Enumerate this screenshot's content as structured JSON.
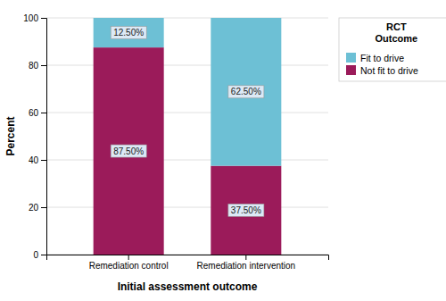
{
  "chart_data": {
    "type": "bar",
    "stacked": true,
    "xlabel": "Initial assessment outcome",
    "ylabel": "Percent",
    "legend_title": "RCT\nOutcome",
    "categories": [
      "Remediation control",
      "Remediation intervention"
    ],
    "series": [
      {
        "name": "Not fit to drive",
        "color": "#9B1B5A",
        "values": [
          87.5,
          37.5
        ],
        "value_labels": [
          "87.50%",
          "37.50%"
        ]
      },
      {
        "name": "Fit to drive",
        "color": "#6DC0D5",
        "values": [
          12.5,
          62.5
        ],
        "value_labels": [
          "12.50%",
          "62.50%"
        ]
      }
    ],
    "ylim": [
      0,
      100
    ],
    "yticks": [
      0,
      20,
      40,
      60,
      80,
      100
    ],
    "grid": true,
    "legend": "right",
    "data_labels": true
  }
}
